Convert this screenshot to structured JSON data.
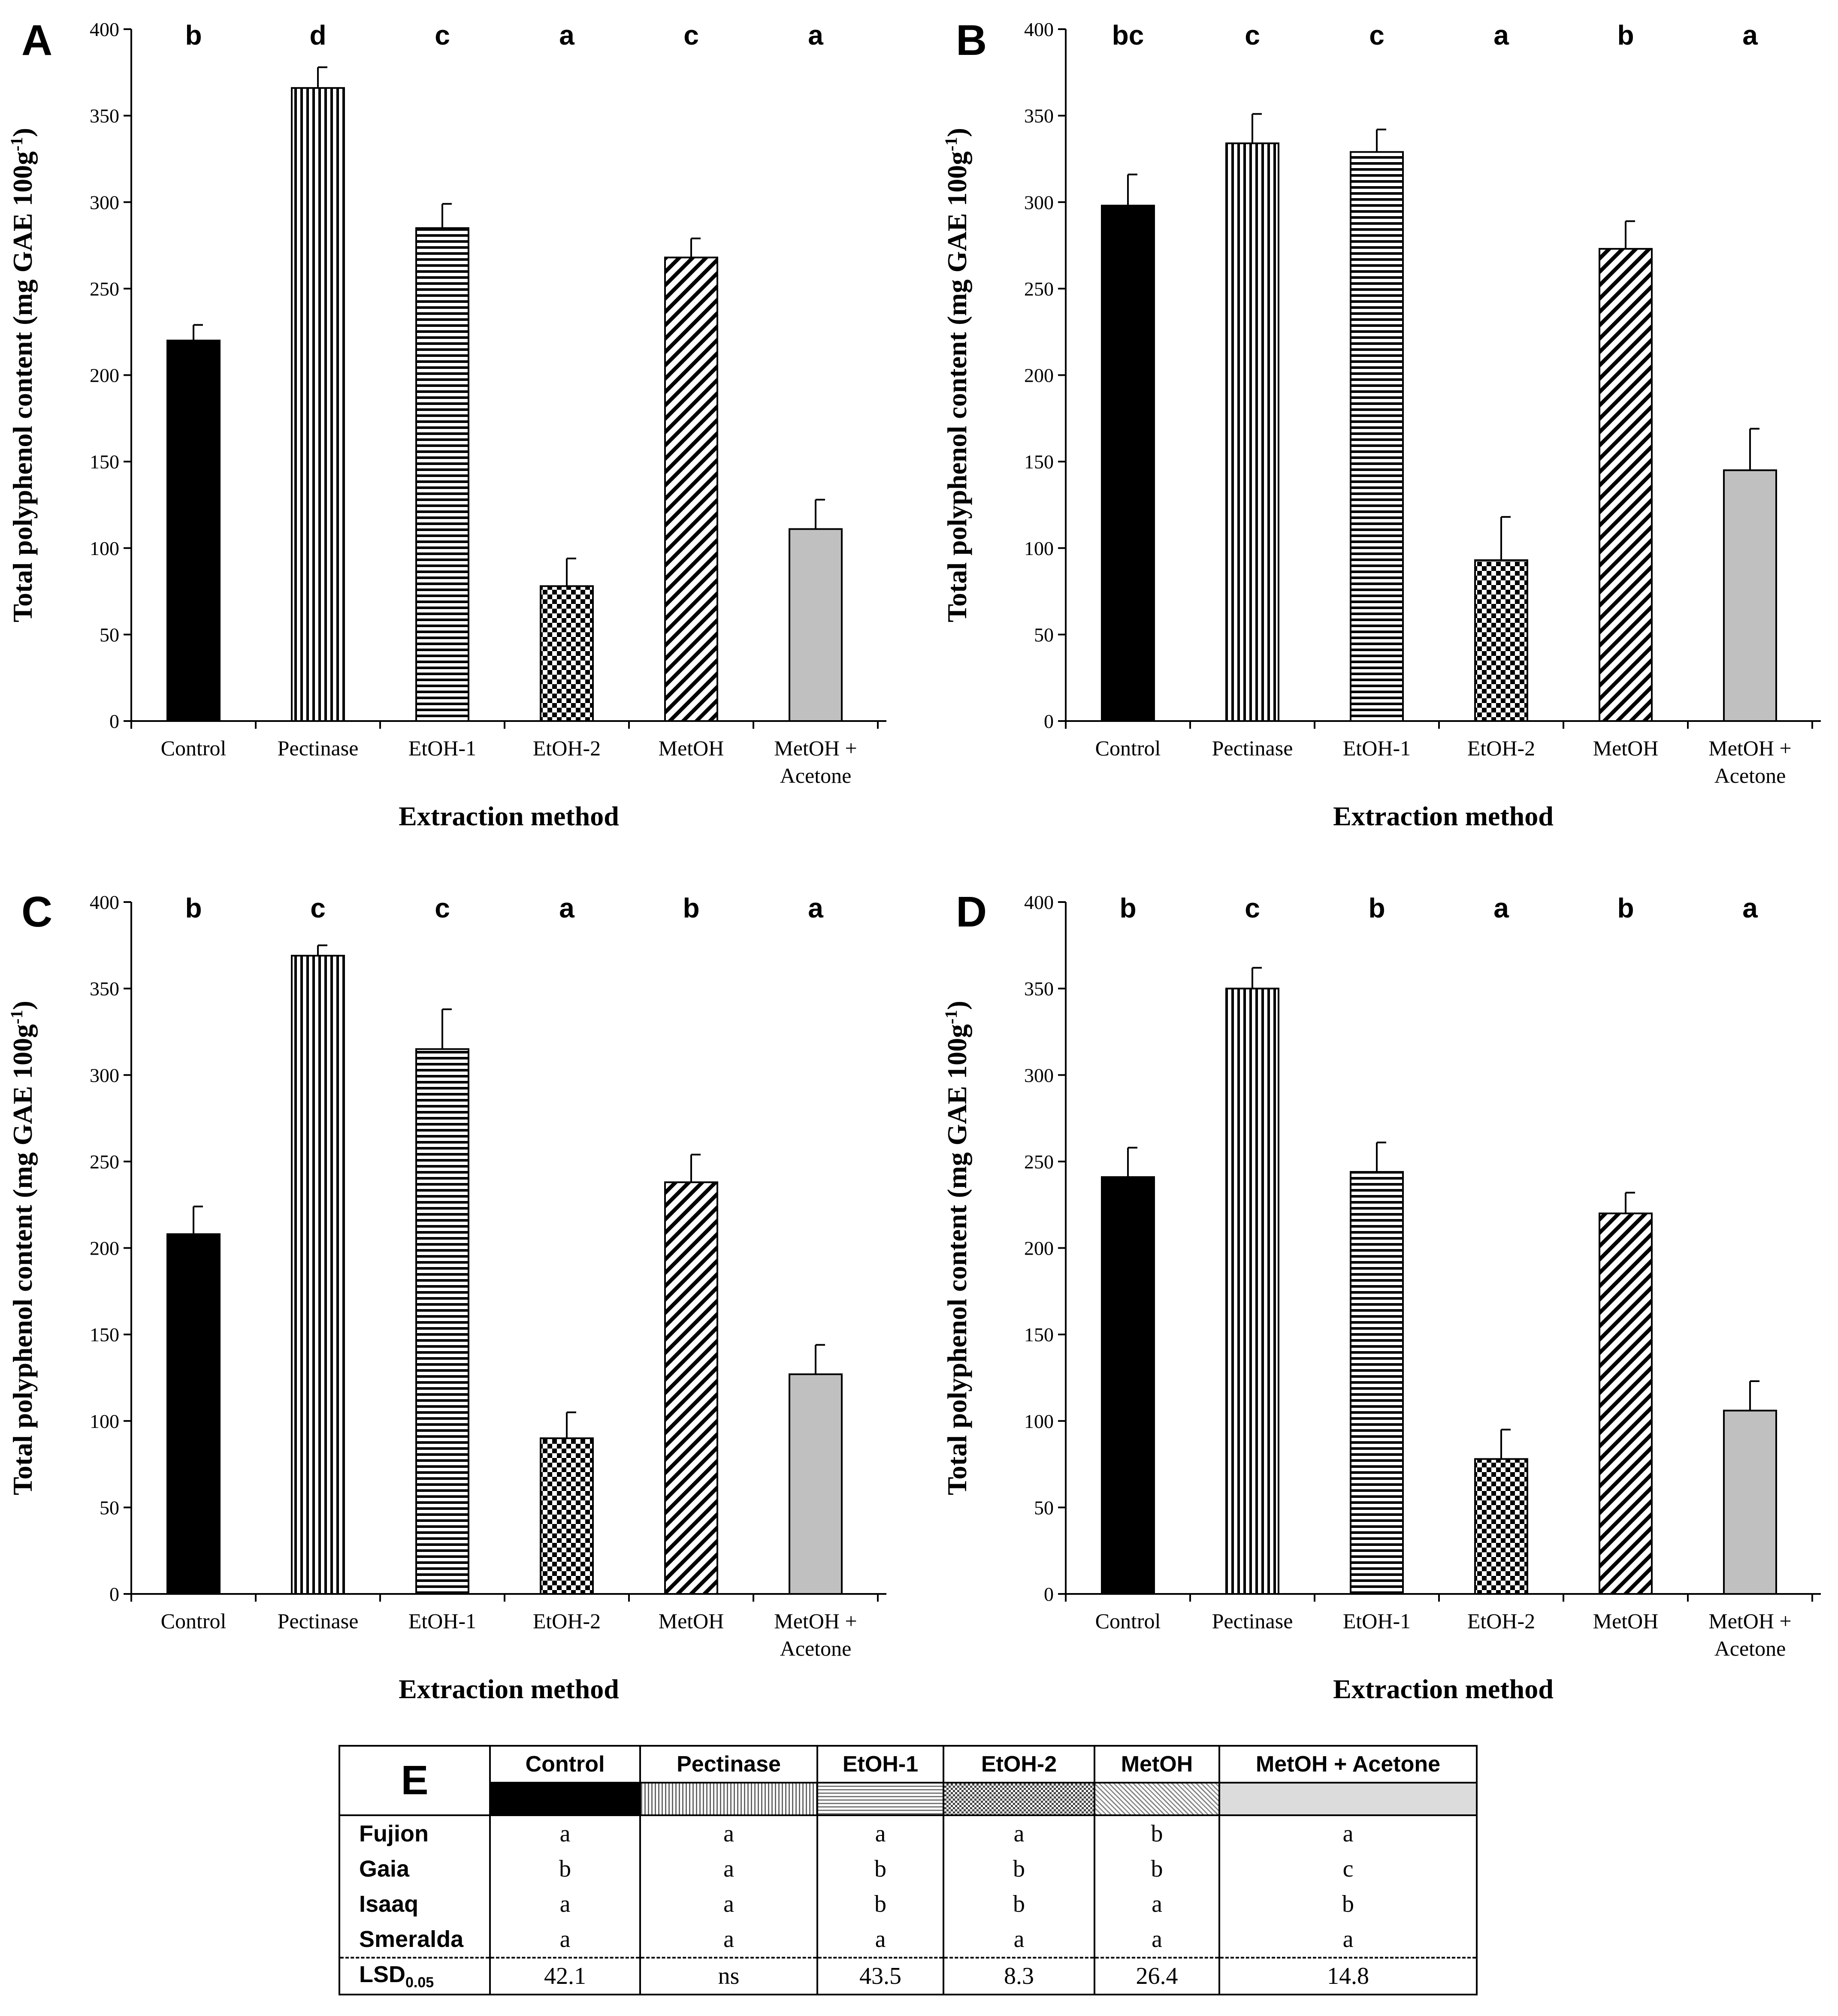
{
  "chart_data": [
    {
      "type": "bar",
      "panel": "A",
      "title": "",
      "categories": [
        "Control",
        "Pectinase",
        "EtOH-1",
        "EtOH-2",
        "MetOH",
        "MetOH + Acetone"
      ],
      "values": [
        220,
        366,
        285,
        78,
        268,
        111
      ],
      "errors": [
        9,
        12,
        14,
        16,
        11,
        17
      ],
      "significance": [
        "b",
        "d",
        "c",
        "a",
        "c",
        "a"
      ],
      "xlabel": "Extraction method",
      "ylabel": "Total polyphenol content (mg GAE 100g-1)",
      "ylim": [
        0,
        400
      ],
      "yticks": [
        0,
        50,
        100,
        150,
        200,
        250,
        300,
        350,
        400
      ],
      "grid": false
    },
    {
      "type": "bar",
      "panel": "B",
      "title": "",
      "categories": [
        "Control",
        "Pectinase",
        "EtOH-1",
        "EtOH-2",
        "MetOH",
        "MetOH + Acetone"
      ],
      "values": [
        298,
        334,
        329,
        93,
        273,
        145
      ],
      "errors": [
        18,
        17,
        13,
        25,
        16,
        24
      ],
      "significance": [
        "bc",
        "c",
        "c",
        "a",
        "b",
        "a"
      ],
      "xlabel": "Extraction method",
      "ylabel": "Total polyphenol content (mg GAE 100g-1)",
      "ylim": [
        0,
        400
      ],
      "yticks": [
        0,
        50,
        100,
        150,
        200,
        250,
        300,
        350,
        400
      ],
      "grid": false
    },
    {
      "type": "bar",
      "panel": "C",
      "title": "",
      "categories": [
        "Control",
        "Pectinase",
        "EtOH-1",
        "EtOH-2",
        "MetOH",
        "MetOH + Acetone"
      ],
      "values": [
        208,
        369,
        315,
        90,
        238,
        127
      ],
      "errors": [
        16,
        6,
        23,
        15,
        16,
        17
      ],
      "significance": [
        "b",
        "c",
        "c",
        "a",
        "b",
        "a"
      ],
      "xlabel": "Extraction method",
      "ylabel": "Total polyphenol content (mg GAE 100g-1)",
      "ylim": [
        0,
        400
      ],
      "yticks": [
        0,
        50,
        100,
        150,
        200,
        250,
        300,
        350,
        400
      ],
      "grid": false
    },
    {
      "type": "bar",
      "panel": "D",
      "title": "",
      "categories": [
        "Control",
        "Pectinase",
        "EtOH-1",
        "EtOH-2",
        "MetOH",
        "MetOH + Acetone"
      ],
      "values": [
        241,
        350,
        244,
        78,
        220,
        106
      ],
      "errors": [
        17,
        12,
        17,
        17,
        12,
        17
      ],
      "significance": [
        "b",
        "c",
        "b",
        "a",
        "b",
        "a"
      ],
      "xlabel": "Extraction method",
      "ylabel": "Total polyphenol content (mg GAE 100g-1)",
      "ylim": [
        0,
        400
      ],
      "yticks": [
        0,
        50,
        100,
        150,
        200,
        250,
        300,
        350,
        400
      ],
      "grid": false
    },
    {
      "type": "table",
      "panel": "E",
      "columns": [
        "Control",
        "Pectinase",
        "EtOH-1",
        "EtOH-2",
        "MetOH",
        "MetOH + Acetone"
      ],
      "rows": [
        {
          "label": "Fujion",
          "values": [
            "a",
            "a",
            "a",
            "a",
            "b",
            "a"
          ]
        },
        {
          "label": "Gaia",
          "values": [
            "b",
            "a",
            "b",
            "b",
            "b",
            "c"
          ]
        },
        {
          "label": "Isaaq",
          "values": [
            "a",
            "a",
            "b",
            "b",
            "a",
            "b"
          ]
        },
        {
          "label": "Smeralda",
          "values": [
            "a",
            "a",
            "a",
            "a",
            "a",
            "a"
          ]
        }
      ],
      "lsd": {
        "label": "LSD",
        "subscript": "0.05",
        "values": [
          "42.1",
          "ns",
          "43.5",
          "8.3",
          "26.4",
          "14.8"
        ]
      }
    }
  ],
  "axis_labels": {
    "x_title": "Extraction method",
    "y_title_main": "Total polyphenol content (mg GAE 100g",
    "y_title_sup": "-1",
    "y_title_close": ")",
    "cat_split": {
      "MetOH + Acetone": [
        "MetOH +",
        "Acetone"
      ]
    }
  },
  "colors": {
    "control": "#000000",
    "pectinase_stripe": "#000000",
    "etoh1_stripe": "#000000",
    "etoh2_check": "#000000",
    "metoh_diag": "#000000",
    "metoh_acetone": "#c0c0c0",
    "axis": "#000000"
  }
}
